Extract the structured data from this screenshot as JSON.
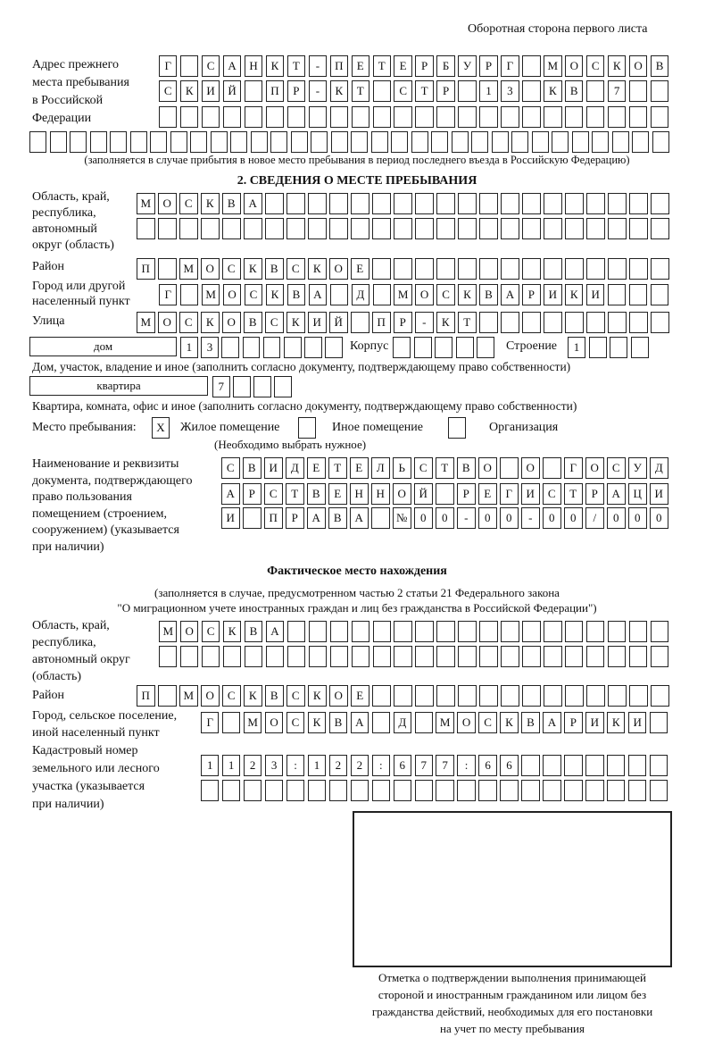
{
  "header": "Оборотная сторона первого листа",
  "prev_address": {
    "label": "Адрес прежнего\nместа пребывания\nв Российской\nФедерации",
    "rows": [
      [
        "Г",
        "",
        "С",
        "А",
        "Н",
        "К",
        "Т",
        "-",
        "П",
        "Е",
        "Т",
        "Е",
        "Р",
        "Б",
        "У",
        "Р",
        "Г",
        "",
        "М",
        "О",
        "С",
        "К",
        "О",
        "В"
      ],
      [
        "С",
        "К",
        "И",
        "Й",
        "",
        "П",
        "Р",
        "-",
        "К",
        "Т",
        "",
        "С",
        "Т",
        "Р",
        "",
        "1",
        "3",
        "",
        "К",
        "В",
        "",
        "7",
        "",
        ""
      ],
      [
        "",
        "",
        "",
        "",
        "",
        "",
        "",
        "",
        "",
        "",
        "",
        "",
        "",
        "",
        "",
        "",
        "",
        "",
        "",
        "",
        "",
        "",
        "",
        ""
      ],
      [
        "",
        "",
        "",
        "",
        "",
        "",
        "",
        "",
        "",
        "",
        "",
        "",
        "",
        "",
        "",
        "",
        "",
        "",
        "",
        "",
        "",
        "",
        "",
        "",
        "",
        "",
        "",
        "",
        "",
        "",
        "",
        ""
      ]
    ],
    "note": "(заполняется в случае прибытия в новое место пребывания в период последнего въезда в Российскую Федерацию)"
  },
  "section2": {
    "title": "2. СВЕДЕНИЯ О МЕСТЕ ПРЕБЫВАНИЯ",
    "region_label": "Область, край,\nреспублика,\nавтономный\nокруг (область)",
    "region_rows": [
      [
        "М",
        "О",
        "С",
        "К",
        "В",
        "А",
        "",
        "",
        "",
        "",
        "",
        "",
        "",
        "",
        "",
        "",
        "",
        "",
        "",
        "",
        "",
        "",
        "",
        "",
        ""
      ],
      [
        "",
        "",
        "",
        "",
        "",
        "",
        "",
        "",
        "",
        "",
        "",
        "",
        "",
        "",
        "",
        "",
        "",
        "",
        "",
        "",
        "",
        "",
        "",
        "",
        ""
      ]
    ],
    "district_label": "Район",
    "district": [
      "П",
      "",
      "М",
      "О",
      "С",
      "К",
      "В",
      "С",
      "К",
      "О",
      "Е",
      "",
      "",
      "",
      "",
      "",
      "",
      "",
      "",
      "",
      "",
      "",
      "",
      "",
      ""
    ],
    "city_label": "Город или другой\nнаселенный пункт",
    "city": [
      "Г",
      "",
      "М",
      "О",
      "С",
      "К",
      "В",
      "А",
      "",
      "Д",
      "",
      "М",
      "О",
      "С",
      "К",
      "В",
      "А",
      "Р",
      "И",
      "К",
      "И",
      "",
      "",
      ""
    ],
    "street_label": "Улица",
    "street": [
      "М",
      "О",
      "С",
      "К",
      "О",
      "В",
      "С",
      "К",
      "И",
      "Й",
      "",
      "П",
      "Р",
      "-",
      "К",
      "Т",
      "",
      "",
      "",
      "",
      "",
      "",
      "",
      "",
      ""
    ],
    "house_type": "дом",
    "house": [
      "1",
      "3",
      "",
      "",
      "",
      "",
      "",
      ""
    ],
    "korpus_label": "Корпус",
    "korpus": [
      "",
      "",
      "",
      "",
      ""
    ],
    "building_label": "Строение",
    "building": [
      "1",
      "",
      "",
      ""
    ],
    "house_note": "Дом, участок, владение и иное (заполнить согласно документу, подтверждающему право собственности)",
    "flat_type": "квартира",
    "flat": [
      "7",
      "",
      "",
      ""
    ],
    "flat_note": "Квартира, комната, офис и иное (заполнить согласно документу, подтверждающему право собственности)",
    "stay_label": "Место пребывания:",
    "stay_options": [
      {
        "label": "Жилое помещение",
        "mark": "X"
      },
      {
        "label": "Иное помещение",
        "mark": ""
      },
      {
        "label": "Организация",
        "mark": ""
      }
    ],
    "stay_note": "(Необходимо выбрать нужное)",
    "doc_label": "Наименование и реквизиты\nдокумента, подтверждающего\nправо пользования\nпомещением (строением,\nсооружением) (указывается\nпри наличии)",
    "doc_rows": [
      [
        "С",
        "В",
        "И",
        "Д",
        "Е",
        "Т",
        "Е",
        "Л",
        "Ь",
        "С",
        "Т",
        "В",
        "О",
        "",
        "О",
        "",
        "Г",
        "О",
        "С",
        "У",
        "Д"
      ],
      [
        "А",
        "Р",
        "С",
        "Т",
        "В",
        "Е",
        "Н",
        "Н",
        "О",
        "Й",
        "",
        "Р",
        "Е",
        "Г",
        "И",
        "С",
        "Т",
        "Р",
        "А",
        "Ц",
        "И"
      ],
      [
        "И",
        "",
        "П",
        "Р",
        "А",
        "В",
        "А",
        "",
        "№",
        "0",
        "0",
        "-",
        "0",
        "0",
        "-",
        "0",
        "0",
        "/",
        "0",
        "0",
        "0"
      ]
    ]
  },
  "actual": {
    "title": "Фактическое место нахождения",
    "note1": "(заполняется в случае, предусмотренном частью 2 статьи 21 Федерального закона",
    "note2": "\"О миграционном учете иностранных граждан и лиц без гражданства в Российской Федерации\")",
    "region_label": "Область, край,\nреспублика,\nавтономный округ\n(область)",
    "region_rows": [
      [
        "М",
        "О",
        "С",
        "К",
        "В",
        "А",
        "",
        "",
        "",
        "",
        "",
        "",
        "",
        "",
        "",
        "",
        "",
        "",
        "",
        "",
        "",
        "",
        "",
        ""
      ],
      [
        "",
        "",
        "",
        "",
        "",
        "",
        "",
        "",
        "",
        "",
        "",
        "",
        "",
        "",
        "",
        "",
        "",
        "",
        "",
        "",
        "",
        "",
        "",
        ""
      ]
    ],
    "district_label": "Район",
    "district": [
      "П",
      "",
      "М",
      "О",
      "С",
      "К",
      "В",
      "С",
      "К",
      "О",
      "Е",
      "",
      "",
      "",
      "",
      "",
      "",
      "",
      "",
      "",
      "",
      "",
      "",
      "",
      ""
    ],
    "city_label": "Город, сельское поселение,\nиной населенный пункт",
    "city": [
      "Г",
      "",
      "М",
      "О",
      "С",
      "К",
      "В",
      "А",
      "",
      "Д",
      "",
      "М",
      "О",
      "С",
      "К",
      "В",
      "А",
      "Р",
      "И",
      "К",
      "И",
      ""
    ],
    "cadastre_label": "Кадастровый номер\nземельного или лесного\nучастка (указывается\nпри наличии)",
    "cadastre_rows": [
      [
        "1",
        "1",
        "2",
        "3",
        ":",
        "1",
        "2",
        "2",
        ":",
        "6",
        "7",
        "7",
        ":",
        "6",
        "6",
        "",
        "",
        "",
        "",
        "",
        "",
        ""
      ],
      [
        "",
        "",
        "",
        "",
        "",
        "",
        "",
        "",
        "",
        "",
        "",
        "",
        "",
        "",
        "",
        "",
        "",
        "",
        "",
        "",
        "",
        ""
      ]
    ]
  },
  "stamp_caption": "Отметка о подтверждении выполнения принимающей\nстороной и иностранным гражданином или лицом без\nгражданства действий, необходимых для его постановки\nна учет по месту пребывания"
}
